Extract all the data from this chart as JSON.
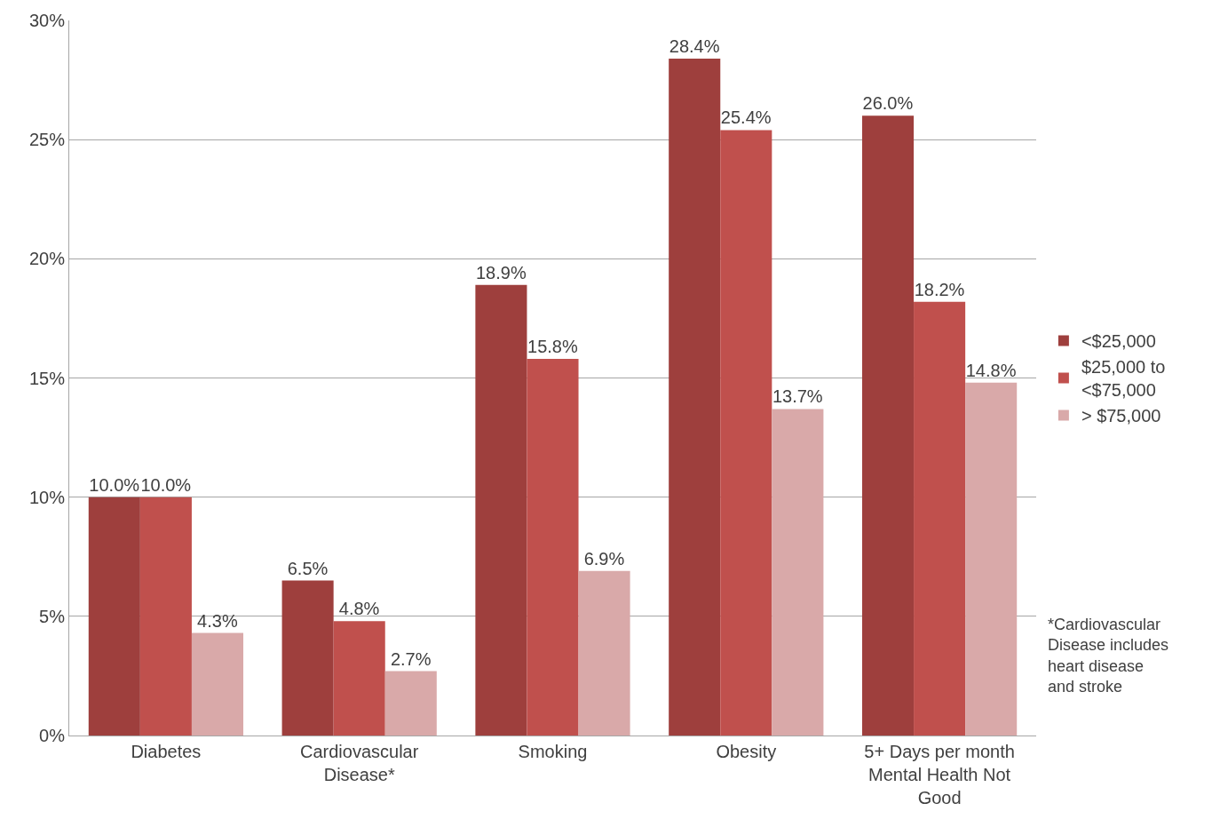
{
  "chart_data": {
    "type": "bar",
    "categories": [
      "Diabetes",
      "Cardiovascular Disease*",
      "Smoking",
      "Obesity",
      "5+ Days per month Mental Health Not Good"
    ],
    "series": [
      {
        "name": "<$25,000",
        "color": "#9e3f3d",
        "values": [
          10.0,
          6.5,
          18.9,
          28.4,
          26.0
        ],
        "value_labels": [
          "10.0%",
          "6.5%",
          "18.9%",
          "28.4%",
          "26.0%"
        ]
      },
      {
        "name": "$25,000 to <$75,000",
        "color": "#c0504d",
        "values": [
          10.0,
          4.8,
          15.8,
          25.4,
          18.2
        ],
        "value_labels": [
          "10.0%",
          "4.8%",
          "15.8%",
          "25.4%",
          "18.2%"
        ]
      },
      {
        "name": "> $75,000",
        "color": "#d9a9a9",
        "values": [
          4.3,
          2.7,
          6.9,
          13.7,
          14.8
        ],
        "value_labels": [
          "4.3%",
          "2.7%",
          "6.9%",
          "13.7%",
          "14.8%"
        ]
      }
    ],
    "ylim": [
      0,
      30
    ],
    "yticks": [
      {
        "value": 0,
        "label": "0%"
      },
      {
        "value": 5,
        "label": "5%"
      },
      {
        "value": 10,
        "label": "10%"
      },
      {
        "value": 15,
        "label": "15%"
      },
      {
        "value": 20,
        "label": "20%"
      },
      {
        "value": 25,
        "label": "25%"
      },
      {
        "value": 30,
        "label": "30%"
      }
    ],
    "grid": "y",
    "legend": "right",
    "annotations": [
      "*Cardiovascular Disease includes heart disease and stroke"
    ]
  }
}
